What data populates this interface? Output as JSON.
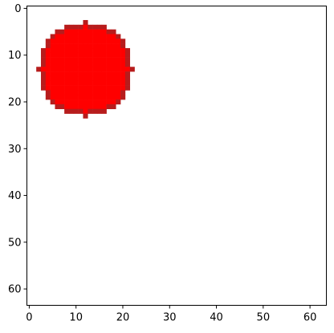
{
  "chart_data": {
    "type": "heatmap",
    "title": "",
    "xlabel": "",
    "ylabel": "",
    "grid": false,
    "legend": "none",
    "image_size": [
      64,
      64
    ],
    "xlim": [
      -0.5,
      63.5
    ],
    "ylim": [
      63.5,
      -0.5
    ],
    "x_ticks": [
      0,
      10,
      20,
      30,
      40,
      50,
      60
    ],
    "x_tick_labels": [
      "0",
      "10",
      "20",
      "30",
      "40",
      "50",
      "60"
    ],
    "y_ticks": [
      0,
      10,
      20,
      30,
      40,
      50,
      60
    ],
    "y_tick_labels": [
      "0",
      "10",
      "20",
      "30",
      "40",
      "50",
      "60"
    ],
    "background_color": "#ffffff",
    "circle": {
      "center": [
        12,
        13
      ],
      "radius": 10,
      "fill_color": "#ff0000",
      "edge_color": "#b71c1c"
    }
  }
}
